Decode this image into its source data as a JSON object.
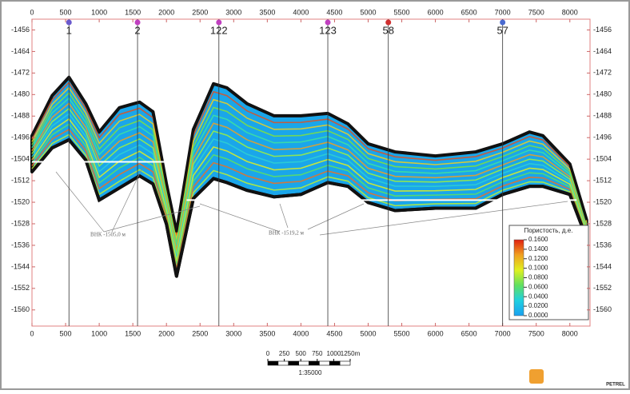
{
  "chart_data": {
    "type": "section",
    "xlim": [
      0,
      8300
    ],
    "ylim": [
      -1566,
      -1452
    ],
    "xticks": [
      0,
      500,
      1000,
      1500,
      2000,
      2500,
      3000,
      3500,
      4000,
      4500,
      5000,
      5500,
      6000,
      6500,
      7000,
      7500,
      8000
    ],
    "yticks": [
      -1456,
      -1464,
      -1472,
      -1480,
      -1488,
      -1496,
      -1504,
      -1512,
      -1520,
      -1528,
      -1536,
      -1544,
      -1552,
      -1560
    ],
    "wells": [
      {
        "name": "1",
        "x": 550,
        "color": "#6a5acd"
      },
      {
        "name": "2",
        "x": 1570,
        "color": "#c040c0"
      },
      {
        "name": "122",
        "x": 2780,
        "color": "#c040c0"
      },
      {
        "name": "123",
        "x": 4400,
        "color": "#c040c0"
      },
      {
        "name": "58",
        "x": 5300,
        "color": "#d03030"
      },
      {
        "name": "57",
        "x": 7000,
        "color": "#4a6ad0"
      }
    ],
    "horizons": {
      "x": [
        0,
        300,
        550,
        800,
        1000,
        1300,
        1600,
        1800,
        2000,
        2150,
        2400,
        2700,
        2900,
        3200,
        3600,
        4000,
        4400,
        4700,
        5000,
        5400,
        6000,
        6600,
        7000,
        7400,
        7600,
        8000,
        8250
      ],
      "top": [
        -1495.3,
        -1480.4,
        -1473.6,
        -1483.4,
        -1493.9,
        -1484.9,
        -1482.8,
        -1486.4,
        -1513.2,
        -1531.1,
        -1493.0,
        -1476.0,
        -1477.5,
        -1483.4,
        -1487.9,
        -1487.9,
        -1487.0,
        -1490.9,
        -1498.3,
        -1501.3,
        -1502.8,
        -1501.3,
        -1498.3,
        -1493.9,
        -1495.3,
        -1505.8,
        -1526.6
      ],
      "base": [
        -1508.7,
        -1499.8,
        -1496.8,
        -1504.3,
        -1519.2,
        -1514.7,
        -1510.2,
        -1513.2,
        -1528.1,
        -1547.5,
        -1518.6,
        -1511.2,
        -1512.7,
        -1515.6,
        -1518.0,
        -1517.1,
        -1512.7,
        -1514.1,
        -1520.1,
        -1523.1,
        -1522.2,
        -1522.2,
        -1517.1,
        -1514.1,
        -1514.1,
        -1517.1,
        -1533.5
      ]
    },
    "contacts": [
      {
        "label": "ВНК -1505,0 м",
        "depth": -1505,
        "x": [
          0,
          2000
        ]
      },
      {
        "label": "ВНК -1519,2 м",
        "depth": -1519.2,
        "x": [
          2300,
          8100
        ]
      }
    ],
    "legend": {
      "title": "Пористость, д.е.",
      "ticks": [
        {
          "value": 0.16,
          "label": "0.1600"
        },
        {
          "value": 0.14,
          "label": "0.1400"
        },
        {
          "value": 0.12,
          "label": "0.1200"
        },
        {
          "value": 0.1,
          "label": "0.1000"
        },
        {
          "value": 0.08,
          "label": "0.0800"
        },
        {
          "value": 0.06,
          "label": "0.0600"
        },
        {
          "value": 0.04,
          "label": "0.0400"
        },
        {
          "value": 0.02,
          "label": "0.0200"
        },
        {
          "value": 0,
          "label": "0.0000"
        }
      ]
    },
    "scale_bar": {
      "ticks": [
        0,
        250,
        500,
        750,
        1000,
        {
          "value": 1250,
          "label": "1250m"
        }
      ],
      "ratio": "1:35000"
    },
    "logo": "PETREL"
  }
}
